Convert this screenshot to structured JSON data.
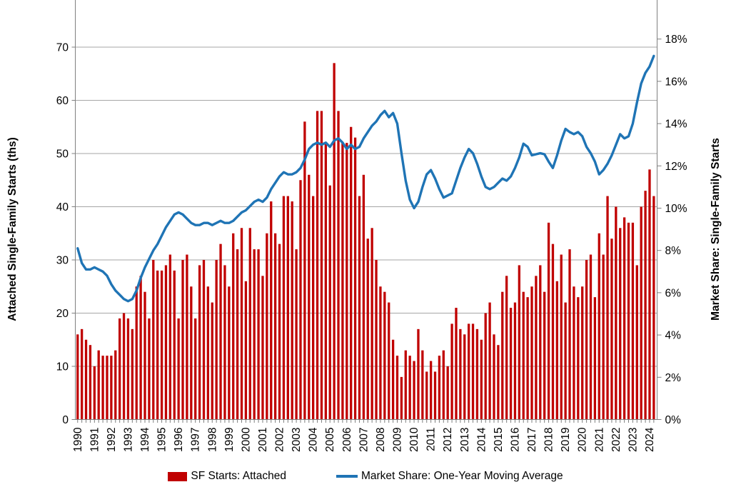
{
  "axes": {
    "left_title": "Attached Single-Family Starts (ths)",
    "right_title": "Market Share: Single-Family Starts"
  },
  "legend": {
    "bar_label": "SF Starts: Attached",
    "line_label": "Market Share: One-Year Moving Average"
  },
  "colors": {
    "bar": "#C00000",
    "line": "#1F74B5",
    "gridline": "#A6A6A6",
    "axis": "#7F7F7F",
    "text": "#000000"
  },
  "chart_data": {
    "type": "bar",
    "frequency": "quarterly",
    "start_year": 1990,
    "title": "",
    "x_tick_labels": [
      "1990",
      "1991",
      "1992",
      "1993",
      "1994",
      "1995",
      "1996",
      "1997",
      "1998",
      "1999",
      "2000",
      "2001",
      "2002",
      "2003",
      "2004",
      "2005",
      "2006",
      "2007",
      "2008",
      "2009",
      "2010",
      "2011",
      "2012",
      "2013",
      "2014",
      "2015",
      "2016",
      "2017",
      "2018",
      "2019",
      "2020",
      "2021",
      "2022",
      "2023",
      "2024"
    ],
    "left_axis": {
      "tick_labels": [
        "0",
        "10",
        "20",
        "30",
        "40",
        "50",
        "60",
        "70"
      ],
      "tick_values": [
        0,
        10,
        20,
        30,
        40,
        50,
        60,
        70
      ],
      "min": 0,
      "max_displayed": 70
    },
    "right_axis": {
      "tick_labels": [
        "0%",
        "2%",
        "4%",
        "6%",
        "8%",
        "10%",
        "12%",
        "14%",
        "16%",
        "18%"
      ],
      "tick_values": [
        0,
        2,
        4,
        6,
        8,
        10,
        12,
        14,
        16,
        18
      ],
      "min": 0,
      "max_displayed": 18
    },
    "grid": "horizontal-only",
    "legend_position": "bottom",
    "series": [
      {
        "name": "SF Starts: Attached",
        "type": "bar",
        "axis": "left",
        "units": "thousands of starts",
        "values": [
          16,
          17,
          15,
          14,
          10,
          13,
          12,
          12,
          12,
          13,
          19,
          20,
          19,
          17,
          25,
          27,
          24,
          19,
          30,
          28,
          28,
          29,
          31,
          28,
          19,
          30,
          31,
          25,
          19,
          29,
          30,
          25,
          22,
          30,
          33,
          29,
          25,
          35,
          32,
          36,
          26,
          36,
          32,
          32,
          27,
          35,
          41,
          35,
          33,
          42,
          42,
          41,
          32,
          45,
          56,
          46,
          42,
          58,
          58,
          52,
          44,
          67,
          58,
          52,
          52,
          55,
          53,
          42,
          46,
          34,
          36,
          30,
          25,
          24,
          22,
          15,
          12,
          8,
          13,
          12,
          11,
          17,
          13,
          9,
          11,
          9,
          12,
          13,
          10,
          18,
          21,
          17,
          16,
          18,
          18,
          17,
          15,
          20,
          22,
          16,
          14,
          24,
          27,
          21,
          22,
          29,
          24,
          23,
          25,
          27,
          29,
          24,
          37,
          33,
          26,
          31,
          22,
          32,
          25,
          23,
          25,
          30,
          31,
          23,
          35,
          31,
          42,
          34,
          40,
          36,
          38,
          37,
          37,
          29,
          40,
          43,
          47,
          42
        ]
      },
      {
        "name": "Market Share: One-Year Moving Average",
        "type": "line",
        "axis": "right",
        "units": "percent",
        "values": [
          8.1,
          7.4,
          7.1,
          7.1,
          7.2,
          7.1,
          7.0,
          6.8,
          6.4,
          6.1,
          5.9,
          5.7,
          5.6,
          5.7,
          6.1,
          6.7,
          7.2,
          7.6,
          8.0,
          8.3,
          8.7,
          9.1,
          9.4,
          9.7,
          9.8,
          9.7,
          9.5,
          9.3,
          9.2,
          9.2,
          9.3,
          9.3,
          9.2,
          9.3,
          9.4,
          9.3,
          9.3,
          9.4,
          9.6,
          9.8,
          9.9,
          10.1,
          10.3,
          10.4,
          10.3,
          10.5,
          10.9,
          11.2,
          11.5,
          11.7,
          11.6,
          11.6,
          11.7,
          11.9,
          12.3,
          12.8,
          13.0,
          13.1,
          13.0,
          13.1,
          12.9,
          13.2,
          13.3,
          13.1,
          12.8,
          13.0,
          12.8,
          12.9,
          13.3,
          13.6,
          13.9,
          14.1,
          14.4,
          14.6,
          14.3,
          14.5,
          14.0,
          12.6,
          11.3,
          10.4,
          10.0,
          10.3,
          11.0,
          11.6,
          11.8,
          11.4,
          10.9,
          10.5,
          10.6,
          10.7,
          11.3,
          11.9,
          12.4,
          12.8,
          12.6,
          12.1,
          11.5,
          11.0,
          10.9,
          11.0,
          11.2,
          11.4,
          11.3,
          11.5,
          11.9,
          12.4,
          13.05,
          12.9,
          12.5,
          12.55,
          12.6,
          12.55,
          12.2,
          11.9,
          12.5,
          13.2,
          13.75,
          13.6,
          13.5,
          13.6,
          13.4,
          12.9,
          12.6,
          12.2,
          11.6,
          11.8,
          12.1,
          12.5,
          13.0,
          13.5,
          13.3,
          13.4,
          14.0,
          15.0,
          15.9,
          16.4,
          16.7,
          17.2
        ]
      }
    ]
  }
}
